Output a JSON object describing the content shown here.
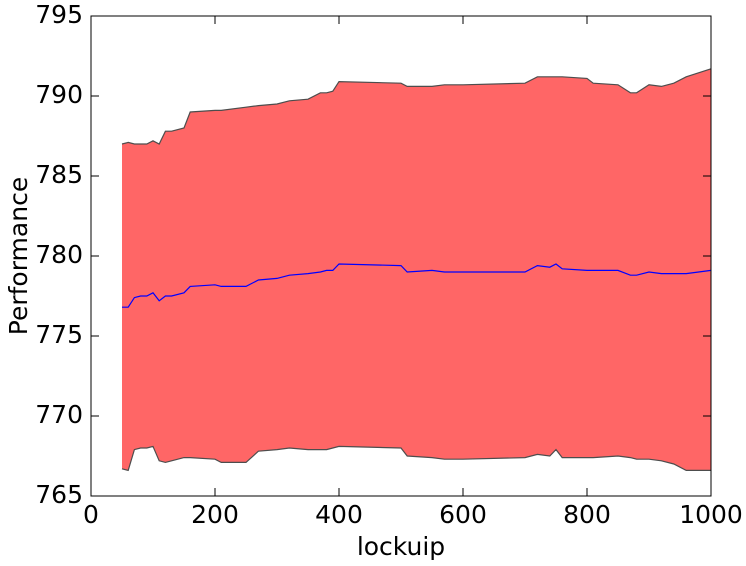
{
  "chart_data": {
    "type": "line",
    "xlabel": "lockuip",
    "ylabel": "Performance",
    "x": [
      50,
      60,
      70,
      80,
      90,
      100,
      110,
      120,
      130,
      150,
      160,
      200,
      210,
      250,
      270,
      300,
      320,
      350,
      370,
      380,
      390,
      400,
      500,
      510,
      550,
      570,
      600,
      700,
      720,
      740,
      750,
      760,
      800,
      810,
      850,
      870,
      880,
      900,
      920,
      940,
      960,
      1000
    ],
    "series": [
      {
        "color": "#0000ff",
        "values": [
          776.8,
          776.8,
          777.4,
          777.5,
          777.5,
          777.7,
          777.2,
          777.5,
          777.5,
          777.7,
          778.1,
          778.2,
          778.1,
          778.1,
          778.5,
          778.6,
          778.8,
          778.9,
          779.0,
          779.1,
          779.1,
          779.5,
          779.4,
          779.0,
          779.1,
          779.0,
          779.0,
          779.0,
          779.4,
          779.3,
          779.5,
          779.2,
          779.1,
          779.1,
          779.1,
          778.8,
          778.8,
          779.0,
          778.9,
          778.9,
          778.9,
          779.1
        ]
      }
    ],
    "band": {
      "color": "#ff6666",
      "edge_color": "#4d4d4d",
      "upper": [
        787.0,
        787.1,
        787.0,
        787.0,
        787.0,
        787.2,
        787.0,
        787.8,
        787.8,
        788.0,
        789.0,
        789.1,
        789.1,
        789.3,
        789.4,
        789.5,
        789.7,
        789.8,
        790.2,
        790.2,
        790.3,
        790.9,
        790.8,
        790.6,
        790.6,
        790.7,
        790.7,
        790.8,
        791.2,
        791.2,
        791.2,
        791.2,
        791.1,
        790.8,
        790.7,
        790.2,
        790.2,
        790.7,
        790.6,
        790.8,
        791.2,
        791.7
      ],
      "lower": [
        766.7,
        766.6,
        767.9,
        768.0,
        768.0,
        768.1,
        767.2,
        767.1,
        767.2,
        767.4,
        767.4,
        767.3,
        767.1,
        767.1,
        767.8,
        767.9,
        768.0,
        767.9,
        767.9,
        767.9,
        768.0,
        768.1,
        768.0,
        767.5,
        767.4,
        767.3,
        767.3,
        767.4,
        767.6,
        767.5,
        767.9,
        767.4,
        767.4,
        767.4,
        767.5,
        767.4,
        767.3,
        767.3,
        767.2,
        767.0,
        766.6,
        766.6
      ]
    },
    "xlim": [
      0,
      1000
    ],
    "xticks": [
      0,
      200,
      400,
      600,
      800,
      1000
    ],
    "ylim": [
      765,
      795
    ],
    "yticks": [
      765,
      770,
      775,
      780,
      785,
      790,
      795
    ],
    "grid": false
  }
}
